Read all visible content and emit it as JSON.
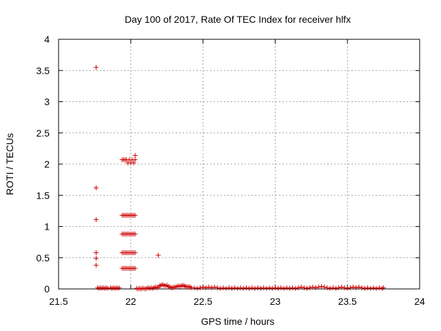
{
  "chart_data": {
    "type": "scatter",
    "title": "Day 100 of 2017, Rate Of TEC Index for receiver hlfx",
    "xlabel": "GPS time / hours",
    "ylabel": "ROTI / TECUs",
    "xlim": [
      21.5,
      24
    ],
    "ylim": [
      0,
      4
    ],
    "xticks": [
      "21.5",
      "22",
      "22.5",
      "23",
      "23.5",
      "24"
    ],
    "yticks": [
      "0",
      "0.5",
      "1",
      "1.5",
      "2",
      "2.5",
      "3",
      "3.5",
      "4"
    ],
    "grid": true,
    "marker": "plus",
    "color": "#cc0000",
    "series": [
      {
        "points": [
          [
            21.76,
            3.55
          ],
          [
            21.76,
            1.62
          ],
          [
            21.76,
            1.11
          ],
          [
            21.76,
            0.58
          ],
          [
            21.76,
            0.49
          ],
          [
            21.76,
            0.38
          ],
          [
            21.94,
            2.07
          ],
          [
            21.95,
            2.07
          ],
          [
            21.96,
            2.07
          ],
          [
            21.97,
            2.07
          ],
          [
            21.98,
            2.02
          ],
          [
            21.99,
            2.07
          ],
          [
            22.0,
            2.02
          ],
          [
            22.01,
            2.07
          ],
          [
            22.02,
            2.02
          ],
          [
            22.03,
            2.07
          ],
          [
            22.03,
            2.14
          ],
          [
            21.94,
            1.18
          ],
          [
            21.95,
            1.18
          ],
          [
            21.96,
            1.18
          ],
          [
            21.97,
            1.18
          ],
          [
            21.98,
            1.18
          ],
          [
            21.99,
            1.18
          ],
          [
            22.0,
            1.18
          ],
          [
            22.01,
            1.18
          ],
          [
            22.02,
            1.18
          ],
          [
            22.03,
            1.18
          ],
          [
            21.94,
            0.88
          ],
          [
            21.95,
            0.88
          ],
          [
            21.96,
            0.88
          ],
          [
            21.97,
            0.88
          ],
          [
            21.98,
            0.88
          ],
          [
            21.99,
            0.88
          ],
          [
            22.0,
            0.88
          ],
          [
            22.01,
            0.88
          ],
          [
            22.02,
            0.88
          ],
          [
            22.03,
            0.88
          ],
          [
            21.94,
            0.58
          ],
          [
            21.95,
            0.58
          ],
          [
            21.96,
            0.58
          ],
          [
            21.97,
            0.58
          ],
          [
            21.98,
            0.58
          ],
          [
            21.99,
            0.58
          ],
          [
            22.0,
            0.58
          ],
          [
            22.01,
            0.58
          ],
          [
            22.02,
            0.58
          ],
          [
            22.03,
            0.58
          ],
          [
            21.94,
            0.33
          ],
          [
            21.95,
            0.33
          ],
          [
            21.96,
            0.33
          ],
          [
            21.97,
            0.33
          ],
          [
            21.98,
            0.33
          ],
          [
            21.99,
            0.33
          ],
          [
            22.0,
            0.33
          ],
          [
            22.01,
            0.33
          ],
          [
            22.02,
            0.33
          ],
          [
            22.03,
            0.33
          ],
          [
            22.19,
            0.54
          ],
          [
            21.77,
            0.02
          ],
          [
            21.78,
            0.01
          ],
          [
            21.79,
            0.02
          ],
          [
            21.8,
            0.01
          ],
          [
            21.81,
            0.02
          ],
          [
            21.82,
            0.01
          ],
          [
            21.83,
            0.02
          ],
          [
            21.84,
            0.01
          ],
          [
            21.86,
            0.02
          ],
          [
            21.87,
            0.01
          ],
          [
            21.88,
            0.02
          ],
          [
            21.89,
            0.01
          ],
          [
            21.9,
            0.02
          ],
          [
            21.91,
            0.01
          ],
          [
            21.92,
            0.02
          ],
          [
            22.04,
            0.01
          ],
          [
            22.05,
            0.0
          ],
          [
            22.06,
            0.01
          ],
          [
            22.07,
            0.0
          ],
          [
            22.08,
            0.01
          ],
          [
            22.09,
            0.01
          ],
          [
            22.1,
            0.0
          ],
          [
            22.11,
            0.01
          ],
          [
            22.12,
            0.02
          ],
          [
            22.13,
            0.01
          ],
          [
            22.14,
            0.02
          ],
          [
            22.15,
            0.01
          ],
          [
            22.16,
            0.02
          ],
          [
            22.17,
            0.03
          ],
          [
            22.18,
            0.02
          ],
          [
            22.19,
            0.03
          ],
          [
            22.2,
            0.05
          ],
          [
            22.21,
            0.06
          ],
          [
            22.22,
            0.07
          ],
          [
            22.23,
            0.06
          ],
          [
            22.24,
            0.05
          ],
          [
            22.25,
            0.06
          ],
          [
            22.26,
            0.04
          ],
          [
            22.27,
            0.03
          ],
          [
            22.28,
            0.02
          ],
          [
            22.29,
            0.02
          ],
          [
            22.3,
            0.03
          ],
          [
            22.31,
            0.03
          ],
          [
            22.32,
            0.04
          ],
          [
            22.33,
            0.05
          ],
          [
            22.34,
            0.04
          ],
          [
            22.35,
            0.05
          ],
          [
            22.36,
            0.06
          ],
          [
            22.37,
            0.05
          ],
          [
            22.38,
            0.04
          ],
          [
            22.39,
            0.03
          ],
          [
            22.4,
            0.04
          ],
          [
            22.41,
            0.03
          ],
          [
            22.42,
            0.02
          ],
          [
            22.44,
            0.02
          ],
          [
            22.46,
            0.01
          ],
          [
            22.48,
            0.02
          ],
          [
            22.5,
            0.03
          ],
          [
            22.52,
            0.02
          ],
          [
            22.54,
            0.03
          ],
          [
            22.56,
            0.02
          ],
          [
            22.58,
            0.03
          ],
          [
            22.6,
            0.02
          ],
          [
            22.62,
            0.01
          ],
          [
            22.64,
            0.02
          ],
          [
            22.66,
            0.01
          ],
          [
            22.68,
            0.02
          ],
          [
            22.7,
            0.01
          ],
          [
            22.72,
            0.02
          ],
          [
            22.74,
            0.01
          ],
          [
            22.76,
            0.02
          ],
          [
            22.78,
            0.01
          ],
          [
            22.8,
            0.02
          ],
          [
            22.82,
            0.01
          ],
          [
            22.84,
            0.02
          ],
          [
            22.86,
            0.01
          ],
          [
            22.88,
            0.02
          ],
          [
            22.9,
            0.01
          ],
          [
            22.92,
            0.02
          ],
          [
            22.94,
            0.01
          ],
          [
            22.96,
            0.02
          ],
          [
            22.98,
            0.01
          ],
          [
            23.0,
            0.02
          ],
          [
            23.02,
            0.01
          ],
          [
            23.04,
            0.02
          ],
          [
            23.06,
            0.01
          ],
          [
            23.08,
            0.02
          ],
          [
            23.1,
            0.01
          ],
          [
            23.12,
            0.02
          ],
          [
            23.14,
            0.01
          ],
          [
            23.16,
            0.02
          ],
          [
            23.18,
            0.03
          ],
          [
            23.2,
            0.02
          ],
          [
            23.22,
            0.01
          ],
          [
            23.24,
            0.02
          ],
          [
            23.26,
            0.03
          ],
          [
            23.28,
            0.02
          ],
          [
            23.3,
            0.03
          ],
          [
            23.32,
            0.04
          ],
          [
            23.34,
            0.03
          ],
          [
            23.36,
            0.02
          ],
          [
            23.38,
            0.01
          ],
          [
            23.4,
            0.02
          ],
          [
            23.42,
            0.01
          ],
          [
            23.44,
            0.02
          ],
          [
            23.46,
            0.03
          ],
          [
            23.48,
            0.02
          ],
          [
            23.5,
            0.01
          ],
          [
            23.52,
            0.02
          ],
          [
            23.54,
            0.03
          ],
          [
            23.56,
            0.02
          ],
          [
            23.58,
            0.03
          ],
          [
            23.6,
            0.02
          ],
          [
            23.62,
            0.01
          ],
          [
            23.64,
            0.02
          ],
          [
            23.66,
            0.01
          ],
          [
            23.68,
            0.02
          ],
          [
            23.7,
            0.01
          ],
          [
            23.72,
            0.02
          ],
          [
            23.74,
            0.01
          ],
          [
            23.75,
            0.02
          ]
        ]
      }
    ]
  }
}
